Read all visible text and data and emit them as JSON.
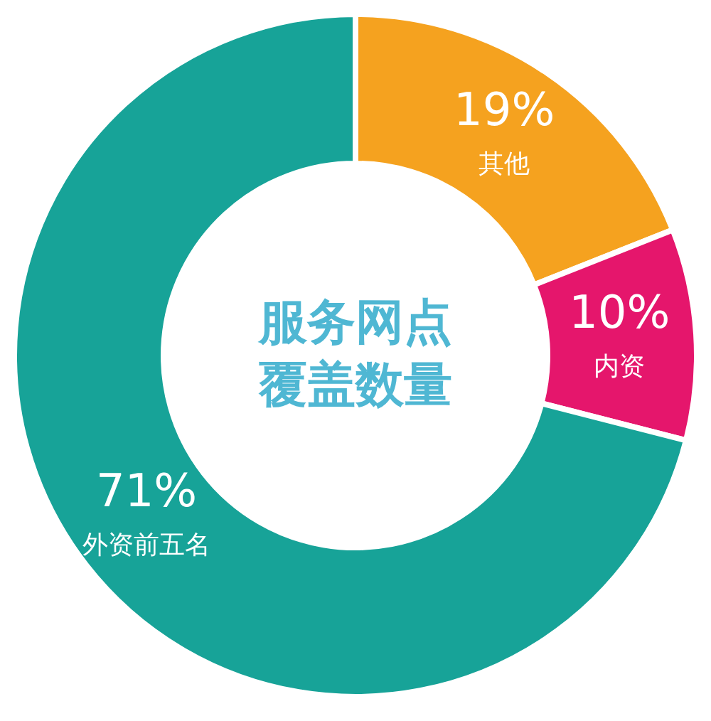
{
  "chart_data": {
    "type": "donut",
    "title": "服务网点覆盖数量",
    "categories": [
      "其他",
      "内资",
      "外资前五名"
    ],
    "values": [
      19,
      10,
      71
    ],
    "colors": [
      "#f5a21f",
      "#e5166c",
      "#17a398"
    ],
    "value_labels": [
      "19%",
      "10%",
      "71%"
    ]
  }
}
